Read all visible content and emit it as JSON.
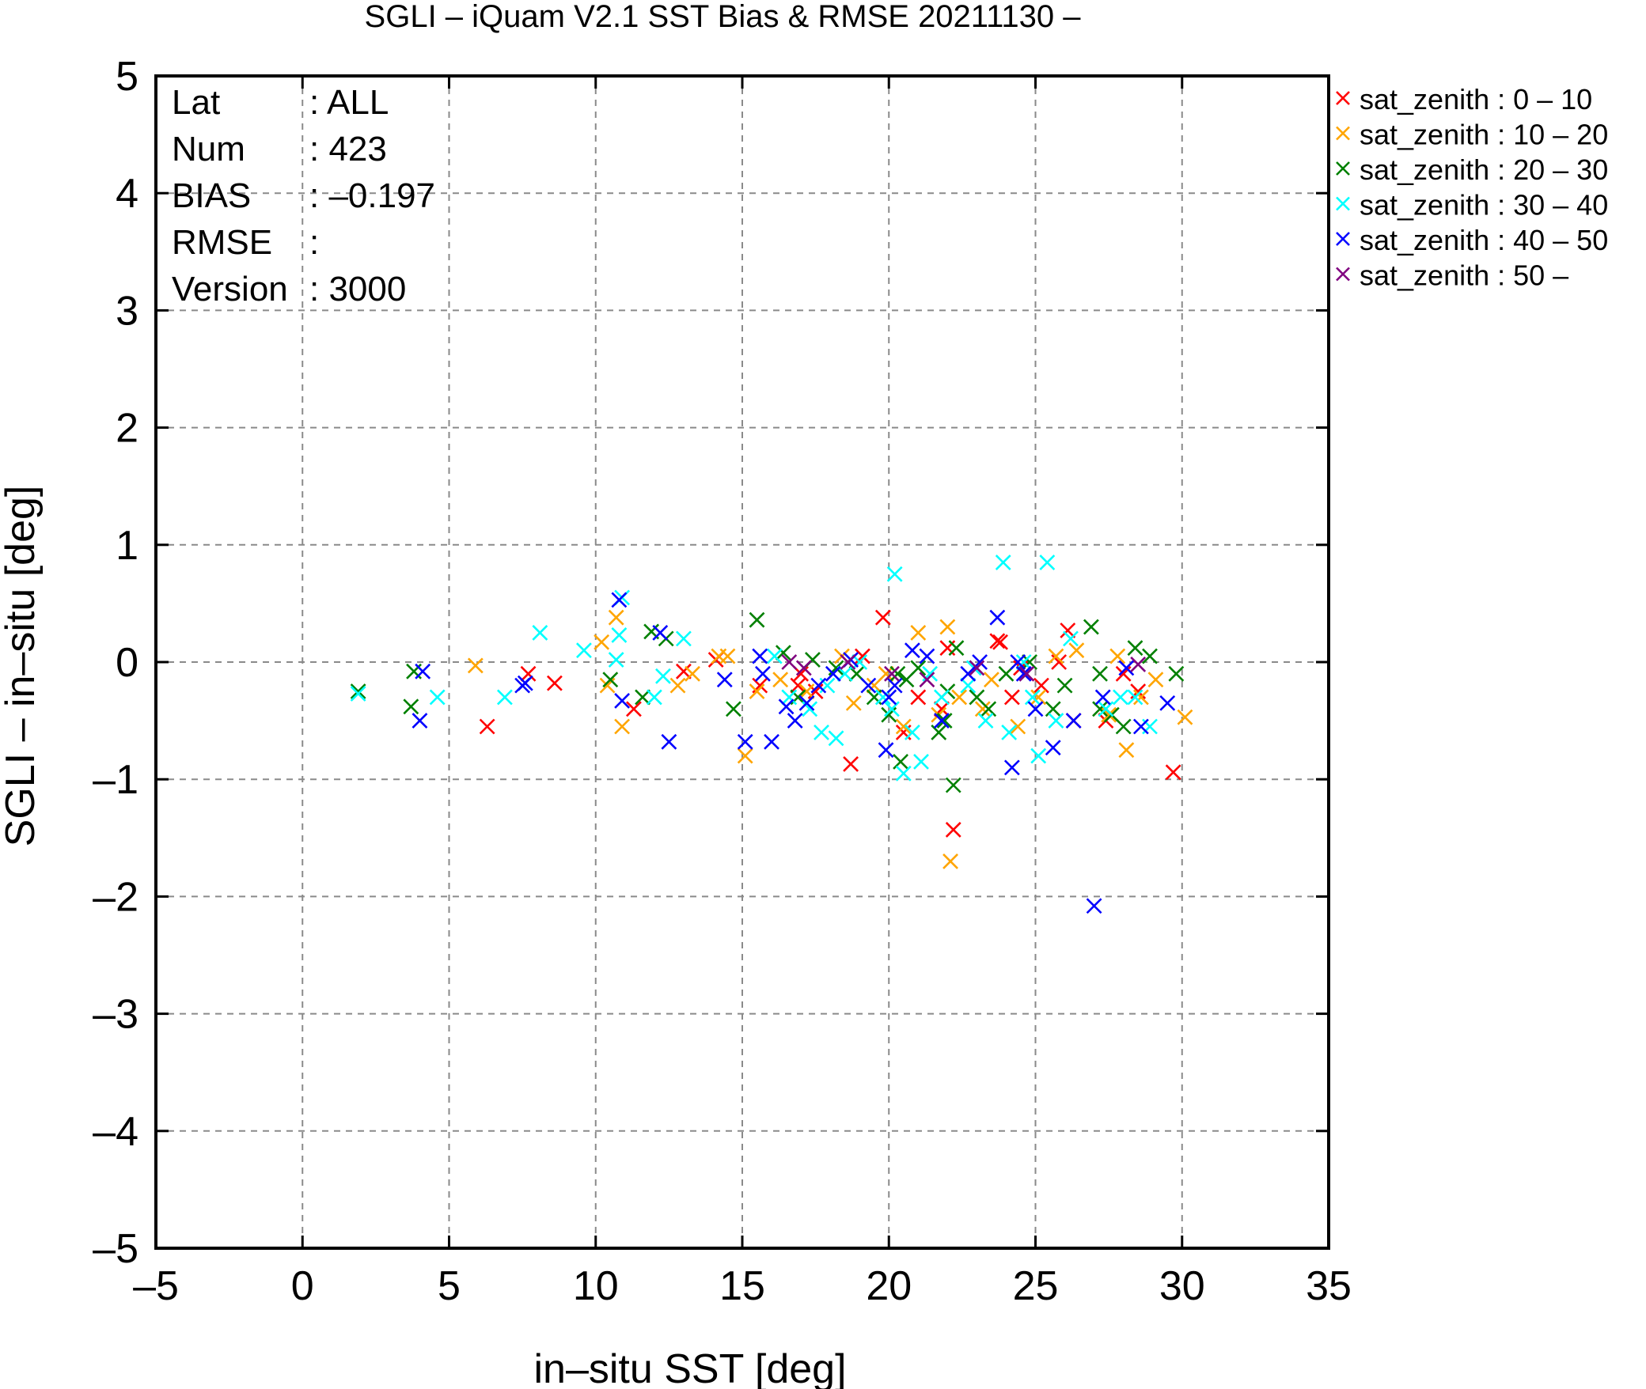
{
  "chart_data": {
    "type": "scatter",
    "title": "SGLI – iQuam V2.1 SST Bias & RMSE 20211130 –",
    "xlabel": "in–situ SST [deg]",
    "ylabel": "SGLI – in–situ [deg]",
    "xlim": [
      -5,
      35
    ],
    "ylim": [
      -5,
      5
    ],
    "xticks": [
      -5,
      0,
      5,
      10,
      15,
      20,
      25,
      30,
      35
    ],
    "yticks": [
      -5,
      -4,
      -3,
      -2,
      -1,
      0,
      1,
      2,
      3,
      4,
      5
    ],
    "xtick_labels": [
      "–5",
      "0",
      "5",
      "10",
      "15",
      "20",
      "25",
      "30",
      "35"
    ],
    "ytick_labels": [
      "–5",
      "–4",
      "–3",
      "–2",
      "–1",
      "0",
      "1",
      "2",
      "3",
      "4",
      "5"
    ],
    "grid": true,
    "legend_position": "outside-top-right",
    "stats": [
      {
        "key": "Lat",
        "value": ": ALL"
      },
      {
        "key": "Num",
        "value": ": 423"
      },
      {
        "key": "BIAS",
        "value": ": –0.197"
      },
      {
        "key": "RMSE",
        "value": ":"
      },
      {
        "key": "Version",
        "value": ": 3000"
      }
    ],
    "series": [
      {
        "name": "sat_zenith :  0 – 10",
        "color": "#ff0000",
        "points": [
          [
            6.3,
            -0.55
          ],
          [
            7.7,
            -0.1
          ],
          [
            8.6,
            -0.18
          ],
          [
            11.3,
            -0.4
          ],
          [
            13.0,
            -0.08
          ],
          [
            14.1,
            0.02
          ],
          [
            15.6,
            -0.2
          ],
          [
            17.0,
            -0.1
          ],
          [
            17.5,
            -0.25
          ],
          [
            18.7,
            -0.87
          ],
          [
            19.1,
            0.05
          ],
          [
            19.8,
            0.38
          ],
          [
            20.5,
            -0.6
          ],
          [
            21.0,
            -0.3
          ],
          [
            21.8,
            -0.4
          ],
          [
            22.0,
            0.12
          ],
          [
            22.2,
            -1.43
          ],
          [
            23.7,
            0.18
          ],
          [
            23.8,
            0.17
          ],
          [
            24.2,
            -0.3
          ],
          [
            24.5,
            -0.05
          ],
          [
            25.2,
            -0.2
          ],
          [
            26.1,
            0.27
          ],
          [
            26.3,
            -0.5
          ],
          [
            27.4,
            -0.5
          ],
          [
            28.0,
            -0.1
          ],
          [
            28.5,
            -0.25
          ],
          [
            29.7,
            -0.94
          ],
          [
            25.8,
            0.0
          ],
          [
            16.9,
            -0.2
          ]
        ]
      },
      {
        "name": "sat_zenith : 10 – 20",
        "color": "#ffa500",
        "points": [
          [
            5.9,
            -0.03
          ],
          [
            10.2,
            0.17
          ],
          [
            10.4,
            -0.2
          ],
          [
            10.7,
            0.38
          ],
          [
            10.9,
            -0.55
          ],
          [
            12.8,
            -0.2
          ],
          [
            13.3,
            -0.1
          ],
          [
            14.2,
            0.05
          ],
          [
            14.5,
            0.05
          ],
          [
            15.1,
            -0.8
          ],
          [
            15.5,
            -0.25
          ],
          [
            16.3,
            -0.15
          ],
          [
            17.2,
            -0.25
          ],
          [
            18.4,
            0.05
          ],
          [
            18.8,
            -0.35
          ],
          [
            19.5,
            -0.2
          ],
          [
            20.5,
            -0.55
          ],
          [
            21.0,
            0.25
          ],
          [
            21.7,
            -0.45
          ],
          [
            22.0,
            0.3
          ],
          [
            22.1,
            -1.7
          ],
          [
            22.4,
            -0.3
          ],
          [
            23.5,
            -0.15
          ],
          [
            24.4,
            -0.55
          ],
          [
            25.1,
            -0.3
          ],
          [
            25.7,
            0.05
          ],
          [
            26.4,
            0.1
          ],
          [
            27.5,
            -0.45
          ],
          [
            27.8,
            0.05
          ],
          [
            28.1,
            -0.75
          ],
          [
            28.6,
            -0.3
          ],
          [
            29.1,
            -0.15
          ],
          [
            30.1,
            -0.47
          ],
          [
            23.2,
            -0.4
          ],
          [
            19.9,
            -0.1
          ]
        ]
      },
      {
        "name": "sat_zenith : 20 – 30",
        "color": "#008000",
        "points": [
          [
            1.9,
            -0.25
          ],
          [
            3.7,
            -0.38
          ],
          [
            3.8,
            -0.08
          ],
          [
            10.5,
            -0.15
          ],
          [
            11.6,
            -0.3
          ],
          [
            11.9,
            0.26
          ],
          [
            12.4,
            0.2
          ],
          [
            14.7,
            -0.4
          ],
          [
            15.5,
            0.36
          ],
          [
            16.4,
            0.08
          ],
          [
            16.9,
            -0.3
          ],
          [
            17.4,
            0.02
          ],
          [
            18.2,
            -0.05
          ],
          [
            18.9,
            -0.1
          ],
          [
            19.5,
            -0.3
          ],
          [
            20.0,
            -0.45
          ],
          [
            20.3,
            -0.1
          ],
          [
            20.4,
            -0.85
          ],
          [
            20.6,
            -0.15
          ],
          [
            21.0,
            -0.05
          ],
          [
            21.7,
            -0.6
          ],
          [
            22.0,
            -0.25
          ],
          [
            22.2,
            -1.05
          ],
          [
            22.3,
            0.12
          ],
          [
            23.0,
            -0.3
          ],
          [
            23.4,
            -0.4
          ],
          [
            24.0,
            -0.1
          ],
          [
            24.8,
            0.0
          ],
          [
            25.6,
            -0.4
          ],
          [
            26.0,
            -0.2
          ],
          [
            26.9,
            0.3
          ],
          [
            27.2,
            -0.1
          ],
          [
            27.6,
            -0.45
          ],
          [
            28.0,
            -0.55
          ],
          [
            28.4,
            0.12
          ],
          [
            28.9,
            0.05
          ],
          [
            29.8,
            -0.1
          ],
          [
            27.2,
            -0.4
          ],
          [
            21.9,
            -0.5
          ]
        ]
      },
      {
        "name": "sat_zenith : 30 – 40",
        "color": "#00ffff",
        "points": [
          [
            1.9,
            -0.27
          ],
          [
            4.6,
            -0.3
          ],
          [
            6.9,
            -0.3
          ],
          [
            8.1,
            0.25
          ],
          [
            9.6,
            0.1
          ],
          [
            10.7,
            0.02
          ],
          [
            10.8,
            0.23
          ],
          [
            10.9,
            0.55
          ],
          [
            12.0,
            -0.3
          ],
          [
            12.3,
            -0.12
          ],
          [
            13.0,
            0.2
          ],
          [
            16.1,
            0.05
          ],
          [
            16.6,
            -0.3
          ],
          [
            17.3,
            -0.4
          ],
          [
            17.7,
            -0.6
          ],
          [
            18.2,
            -0.65
          ],
          [
            19.0,
            0.0
          ],
          [
            19.8,
            -0.3
          ],
          [
            20.1,
            -0.4
          ],
          [
            20.2,
            0.75
          ],
          [
            20.5,
            -0.95
          ],
          [
            20.8,
            -0.6
          ],
          [
            21.1,
            -0.85
          ],
          [
            21.8,
            -0.3
          ],
          [
            22.7,
            -0.2
          ],
          [
            23.3,
            -0.5
          ],
          [
            23.9,
            0.85
          ],
          [
            24.1,
            -0.6
          ],
          [
            24.6,
            0.0
          ],
          [
            25.1,
            -0.8
          ],
          [
            25.4,
            0.85
          ],
          [
            25.7,
            -0.5
          ],
          [
            26.2,
            0.2
          ],
          [
            27.4,
            -0.4
          ],
          [
            27.9,
            -0.3
          ],
          [
            28.4,
            -0.3
          ],
          [
            28.9,
            -0.55
          ],
          [
            18.5,
            -0.1
          ],
          [
            22.9,
            -0.05
          ],
          [
            24.9,
            -0.3
          ],
          [
            17.9,
            -0.2
          ],
          [
            21.4,
            -0.1
          ]
        ]
      },
      {
        "name": "sat_zenith : 40 – 50",
        "color": "#0000ff",
        "points": [
          [
            4.0,
            -0.5
          ],
          [
            4.1,
            -0.08
          ],
          [
            7.5,
            -0.2
          ],
          [
            7.6,
            -0.18
          ],
          [
            10.8,
            0.53
          ],
          [
            10.9,
            -0.33
          ],
          [
            12.2,
            0.25
          ],
          [
            12.5,
            -0.68
          ],
          [
            14.4,
            -0.15
          ],
          [
            15.1,
            -0.68
          ],
          [
            15.6,
            0.05
          ],
          [
            15.7,
            -0.1
          ],
          [
            16.0,
            -0.68
          ],
          [
            16.5,
            -0.38
          ],
          [
            16.8,
            -0.5
          ],
          [
            17.2,
            -0.35
          ],
          [
            18.1,
            -0.1
          ],
          [
            18.7,
            0.02
          ],
          [
            19.3,
            -0.2
          ],
          [
            19.9,
            -0.75
          ],
          [
            20.2,
            -0.2
          ],
          [
            20.8,
            0.1
          ],
          [
            21.3,
            0.05
          ],
          [
            21.8,
            -0.5
          ],
          [
            22.7,
            -0.1
          ],
          [
            23.1,
            0.0
          ],
          [
            23.7,
            0.38
          ],
          [
            24.2,
            -0.9
          ],
          [
            24.6,
            -0.1
          ],
          [
            25.0,
            -0.4
          ],
          [
            25.6,
            -0.73
          ],
          [
            26.3,
            -0.5
          ],
          [
            27.0,
            -2.08
          ],
          [
            27.3,
            -0.3
          ],
          [
            28.1,
            -0.05
          ],
          [
            28.6,
            -0.55
          ],
          [
            29.5,
            -0.35
          ],
          [
            20.0,
            -0.3
          ],
          [
            24.4,
            0.0
          ],
          [
            17.6,
            -0.2
          ]
        ]
      },
      {
        "name": "sat_zenith : 50 –",
        "color": "#800080",
        "points": [
          [
            16.6,
            0.0
          ],
          [
            17.1,
            -0.05
          ],
          [
            18.6,
            0.0
          ],
          [
            20.1,
            -0.1
          ],
          [
            21.3,
            -0.15
          ],
          [
            23.0,
            -0.05
          ],
          [
            24.7,
            -0.1
          ],
          [
            28.5,
            -0.02
          ]
        ]
      }
    ]
  }
}
